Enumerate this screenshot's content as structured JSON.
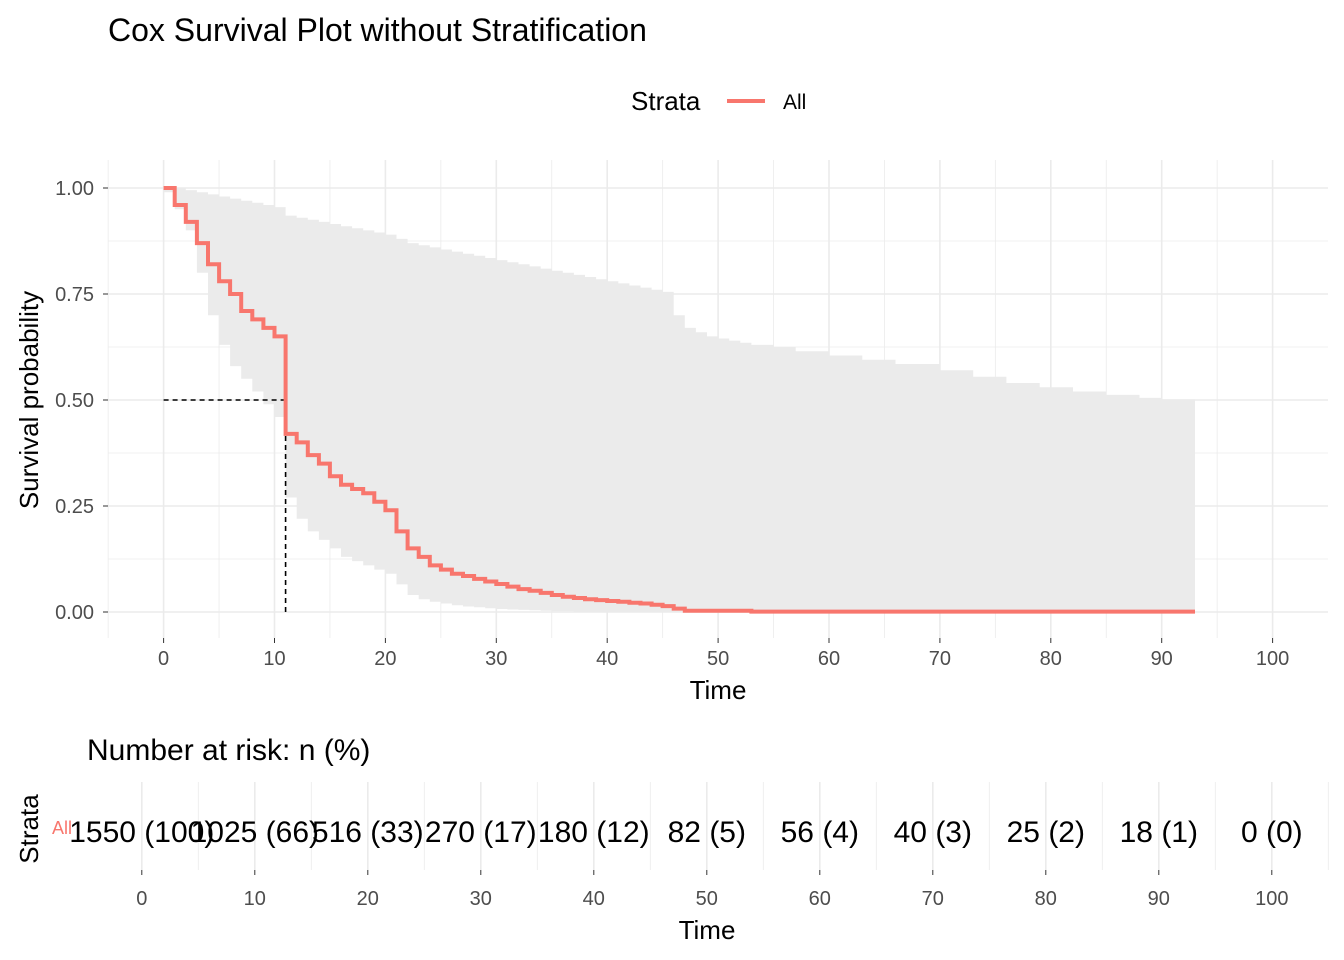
{
  "chart_data": {
    "type": "line",
    "title": "Cox Survival Plot without Stratification",
    "xlabel": "Time",
    "ylabel": "Survival probability",
    "xlim": [
      0,
      100
    ],
    "ylim": [
      0,
      1
    ],
    "x_ticks": [
      "0",
      "10",
      "20",
      "30",
      "40",
      "50",
      "60",
      "70",
      "80",
      "90",
      "100"
    ],
    "y_ticks": [
      "0.00",
      "0.25",
      "0.50",
      "0.75",
      "1.00"
    ],
    "grid": true,
    "legend": {
      "title": "Strata",
      "position": "top",
      "entries": [
        "All"
      ]
    },
    "colors": {
      "series": "#F8766D",
      "ci_band": "#ebebeb",
      "grid": "#ebebeb",
      "median_line": "#000000"
    },
    "median_survival": {
      "time": 11,
      "probability": 0.5
    },
    "series": [
      {
        "name": "All",
        "step": true,
        "x": [
          0,
          1,
          2,
          3,
          4,
          5,
          6,
          7,
          8,
          9,
          10,
          11,
          12,
          13,
          14,
          15,
          16,
          17,
          18,
          19,
          20,
          21,
          22,
          23,
          24,
          25,
          26,
          27,
          28,
          29,
          30,
          31,
          32,
          33,
          34,
          35,
          36,
          37,
          38,
          39,
          40,
          41,
          42,
          43,
          44,
          45,
          46,
          47,
          53,
          93
        ],
        "y": [
          1.0,
          0.96,
          0.92,
          0.87,
          0.82,
          0.78,
          0.75,
          0.71,
          0.69,
          0.67,
          0.65,
          0.42,
          0.4,
          0.37,
          0.35,
          0.32,
          0.3,
          0.29,
          0.28,
          0.26,
          0.24,
          0.19,
          0.15,
          0.13,
          0.11,
          0.1,
          0.09,
          0.085,
          0.078,
          0.072,
          0.066,
          0.06,
          0.054,
          0.05,
          0.045,
          0.04,
          0.036,
          0.033,
          0.03,
          0.028,
          0.026,
          0.024,
          0.022,
          0.02,
          0.017,
          0.014,
          0.008,
          0.003,
          0.001,
          0.001
        ]
      }
    ],
    "confidence_band": {
      "x": [
        0,
        1,
        2,
        3,
        4,
        5,
        6,
        7,
        8,
        9,
        10,
        11,
        12,
        13,
        14,
        15,
        16,
        17,
        18,
        19,
        20,
        21,
        22,
        23,
        24,
        25,
        26,
        27,
        28,
        29,
        30,
        31,
        32,
        33,
        34,
        35,
        36,
        37,
        38,
        39,
        40,
        41,
        42,
        43,
        44,
        45,
        46,
        47,
        48,
        49,
        50,
        51,
        52,
        53,
        55,
        57,
        60,
        63,
        66,
        70,
        73,
        76,
        79,
        82,
        85,
        88,
        90,
        93
      ],
      "upper": [
        1.0,
        1.0,
        0.995,
        0.99,
        0.985,
        0.98,
        0.975,
        0.97,
        0.965,
        0.96,
        0.955,
        0.935,
        0.93,
        0.925,
        0.92,
        0.915,
        0.91,
        0.905,
        0.9,
        0.895,
        0.89,
        0.88,
        0.87,
        0.865,
        0.86,
        0.855,
        0.85,
        0.845,
        0.84,
        0.835,
        0.83,
        0.825,
        0.82,
        0.815,
        0.81,
        0.805,
        0.8,
        0.795,
        0.79,
        0.785,
        0.78,
        0.775,
        0.77,
        0.765,
        0.76,
        0.755,
        0.7,
        0.67,
        0.66,
        0.65,
        0.645,
        0.64,
        0.635,
        0.63,
        0.625,
        0.615,
        0.605,
        0.595,
        0.585,
        0.57,
        0.555,
        0.54,
        0.53,
        0.52,
        0.512,
        0.505,
        0.502,
        0.5
      ],
      "lower": [
        0.99,
        0.95,
        0.9,
        0.8,
        0.7,
        0.63,
        0.58,
        0.55,
        0.52,
        0.49,
        0.46,
        0.27,
        0.22,
        0.19,
        0.17,
        0.15,
        0.13,
        0.12,
        0.11,
        0.1,
        0.09,
        0.065,
        0.04,
        0.03,
        0.024,
        0.02,
        0.016,
        0.013,
        0.011,
        0.009,
        0.007,
        0.006,
        0.005,
        0.004,
        0.003,
        0.002,
        0.002,
        0.001,
        0.001,
        0.001,
        0.001,
        0.0,
        0.0,
        0.0,
        0.0,
        0.0,
        0.0,
        0.0,
        0.0,
        0.0,
        0.0,
        0.0,
        0.0,
        0.0,
        0.0,
        0.0,
        0.0,
        0.0,
        0.0,
        0.0,
        0.0,
        0.0,
        0.0,
        0.0,
        0.0,
        0.0,
        0.0,
        0.0
      ]
    },
    "risk_table": {
      "title": "Number at risk: n (%)",
      "ylabel": "Strata",
      "xlabel": "Time",
      "strata_label": "All",
      "x": [
        0,
        10,
        20,
        30,
        40,
        50,
        60,
        70,
        80,
        90,
        100
      ],
      "x_ticks": [
        "0",
        "10",
        "20",
        "30",
        "40",
        "50",
        "60",
        "70",
        "80",
        "90",
        "100"
      ],
      "values": [
        "1550 (100)",
        "1025 (66)",
        "516 (33)",
        "270 (17)",
        "180 (12)",
        "82 (5)",
        "56 (4)",
        "40 (3)",
        "25 (2)",
        "18 (1)",
        "0 (0)"
      ]
    }
  }
}
